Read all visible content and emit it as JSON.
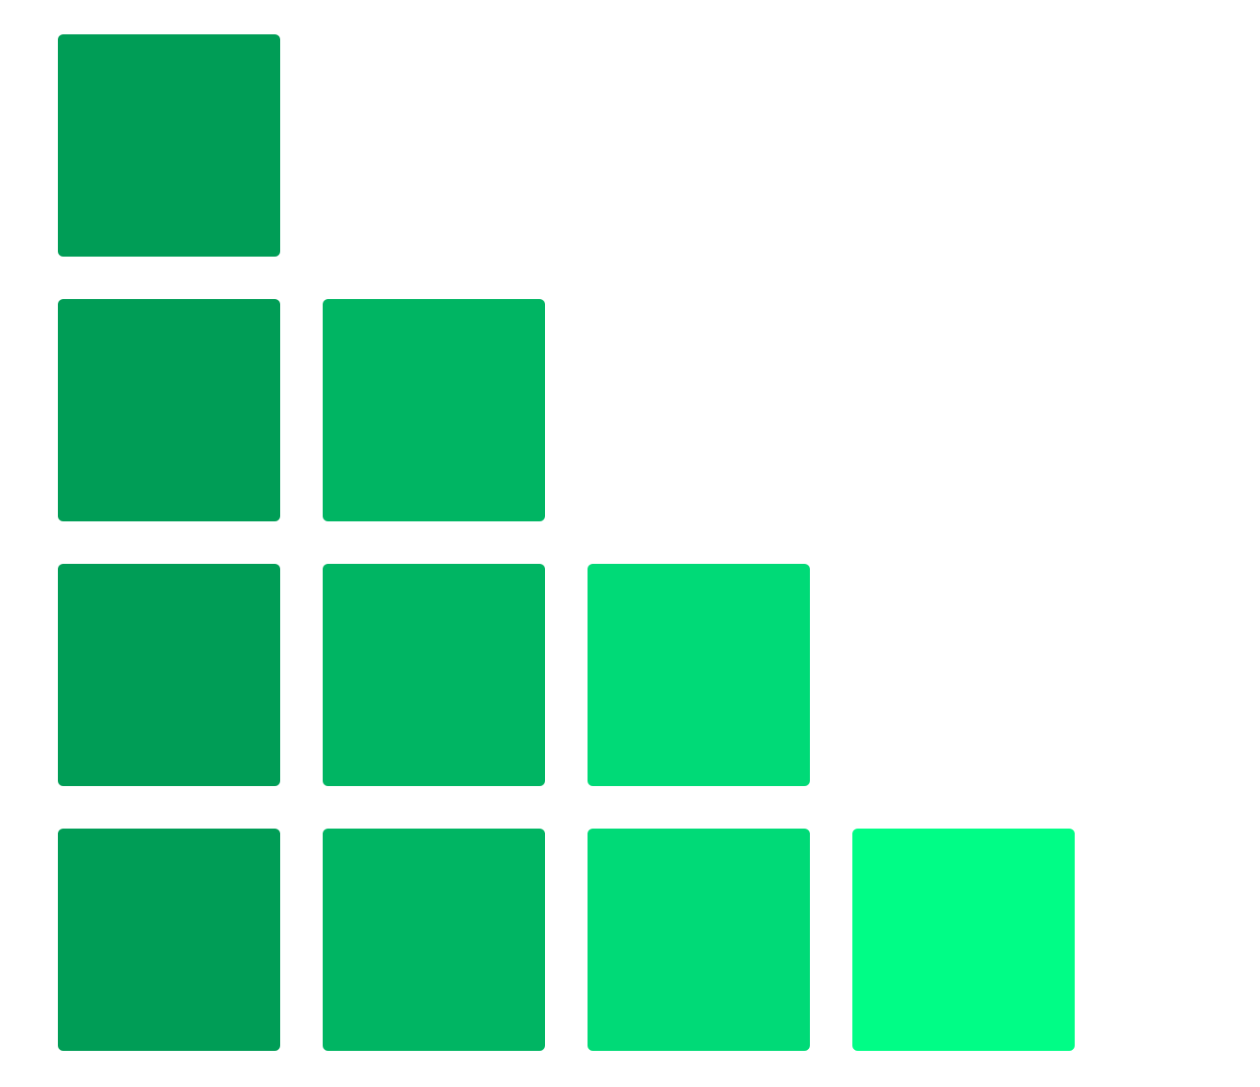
{
  "logo": {
    "name": "green-staircase-blocks",
    "rows": [
      {
        "count": 1
      },
      {
        "count": 2
      },
      {
        "count": 3
      },
      {
        "count": 4
      }
    ],
    "column_colors": [
      "#009d56",
      "#00b563",
      "#00da77",
      "#00fd86"
    ]
  }
}
